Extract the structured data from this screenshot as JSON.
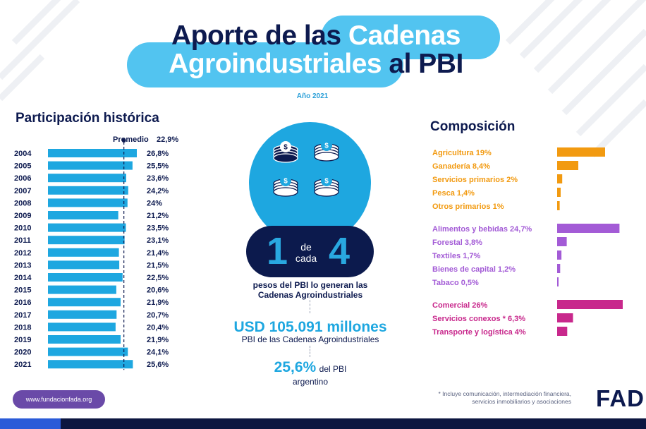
{
  "header": {
    "title_part1": "Aporte de las",
    "title_part2": "Cadenas",
    "title_part3": "Agroindustriales",
    "title_part4": "al PBI",
    "year": "Año 2021"
  },
  "left_section": {
    "title": "Participación histórica",
    "average_label": "Promedio",
    "average_value": "22,9%"
  },
  "center": {
    "ratio_one": "1",
    "ratio_de": "de",
    "ratio_cada": "cada",
    "ratio_four": "4",
    "pesos_line1": "pesos del PBI lo generan las",
    "pesos_line2": "Cadenas Agroindustriales",
    "usd_value": "USD 105.091 millones",
    "usd_sub": "PBI de las Cadenas Agroindustriales",
    "pct_value": "25,6%",
    "pct_suffix": "del PBI",
    "pct_sub": "argentino"
  },
  "right_section": {
    "title": "Composición",
    "footnote_line1": "* Incluye comunicación, intermediación financiera,",
    "footnote_line2": "servicios inmobiliarios y asociaciones"
  },
  "footer": {
    "url": "www.fundacionfada.org",
    "logo": "FAD"
  },
  "colors": {
    "title_pill": "#52c4f0",
    "dark_navy": "#0d1a4f",
    "bar_blue": "#1ea7e0",
    "orange": "#f29a10",
    "purple": "#a35bd6",
    "magenta": "#c8288c",
    "url_pill": "#6a4aa8"
  },
  "icons": [
    "coin-stack-icon",
    "fad-logo"
  ],
  "chart_data": [
    {
      "type": "bar",
      "orientation": "horizontal",
      "title": "Participación histórica",
      "categories": [
        "2004",
        "2005",
        "2006",
        "2007",
        "2008",
        "2009",
        "2010",
        "2011",
        "2012",
        "2013",
        "2014",
        "2015",
        "2016",
        "2017",
        "2018",
        "2019",
        "2020",
        "2021"
      ],
      "values": [
        26.8,
        25.5,
        23.6,
        24.2,
        24,
        21.2,
        23.5,
        23.1,
        21.4,
        21.5,
        22.5,
        20.6,
        21.9,
        20.7,
        20.4,
        21.9,
        24.1,
        25.6
      ],
      "value_labels": [
        "26,8%",
        "25,5%",
        "23,6%",
        "24,2%",
        "24%",
        "21,2%",
        "23,5%",
        "23,1%",
        "21,4%",
        "21,5%",
        "22,5%",
        "20,6%",
        "21,9%",
        "20,7%",
        "20,4%",
        "21,9%",
        "24,1%",
        "25,6%"
      ],
      "reference_line": {
        "label": "Promedio",
        "value": 22.9
      },
      "color": "#1ea7e0"
    },
    {
      "type": "bar",
      "orientation": "horizontal",
      "title": "Composición",
      "groups": [
        {
          "color": "#f29a10",
          "items": [
            {
              "label": "Agricultura 19%",
              "value": 19
            },
            {
              "label": "Ganadería 8,4%",
              "value": 8.4
            },
            {
              "label": "Servicios primarios 2%",
              "value": 2
            },
            {
              "label": "Pesca 1,4%",
              "value": 1.4
            },
            {
              "label": "Otros primarios 1%",
              "value": 1
            }
          ]
        },
        {
          "color": "#a35bd6",
          "items": [
            {
              "label": "Alimentos y bebidas 24,7%",
              "value": 24.7
            },
            {
              "label": "Forestal 3,8%",
              "value": 3.8
            },
            {
              "label": "Textiles 1,7%",
              "value": 1.7
            },
            {
              "label": "Bienes de capital 1,2%",
              "value": 1.2
            },
            {
              "label": "Tabaco 0,5%",
              "value": 0.5
            }
          ]
        },
        {
          "color": "#c8288c",
          "items": [
            {
              "label": "Comercial 26%",
              "value": 26
            },
            {
              "label": "Servicios conexos * 6,3%",
              "value": 6.3
            },
            {
              "label": "Transporte y logística 4%",
              "value": 4
            }
          ]
        }
      ]
    }
  ]
}
